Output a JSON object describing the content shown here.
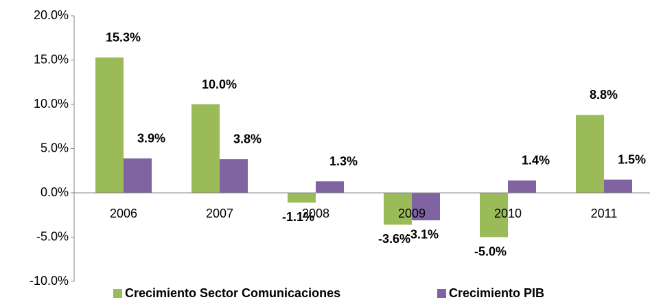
{
  "chart_data": {
    "type": "bar",
    "categories": [
      "2006",
      "2007",
      "2008",
      "2009",
      "2010",
      "2011"
    ],
    "series": [
      {
        "name": "Crecimiento Sector Comunicaciones",
        "color": "#9bbb59",
        "values": [
          15.3,
          10.0,
          -1.1,
          -3.6,
          -5.0,
          8.8
        ],
        "value_labels": [
          "15.3%",
          "10.0%",
          "-1.1%",
          "-3.6%",
          "-5.0%",
          "8.8%"
        ]
      },
      {
        "name": "Crecimiento PIB",
        "color": "#8064a2",
        "values": [
          3.9,
          3.8,
          1.3,
          -3.1,
          1.4,
          1.5
        ],
        "value_labels": [
          "3.9%",
          "3.8%",
          "1.3%",
          "-3.1%",
          "1.4%",
          "1.5%"
        ]
      }
    ],
    "ylim": [
      -10,
      20
    ],
    "yticks": [
      {
        "value": -10,
        "label": "-10.0%"
      },
      {
        "value": -5,
        "label": "-5.0%"
      },
      {
        "value": 0,
        "label": "0.0%"
      },
      {
        "value": 5,
        "label": "5.0%"
      },
      {
        "value": 10,
        "label": "10.0%"
      },
      {
        "value": 15,
        "label": "15.0%"
      },
      {
        "value": 20,
        "label": "20.0%"
      }
    ],
    "grid": false
  }
}
